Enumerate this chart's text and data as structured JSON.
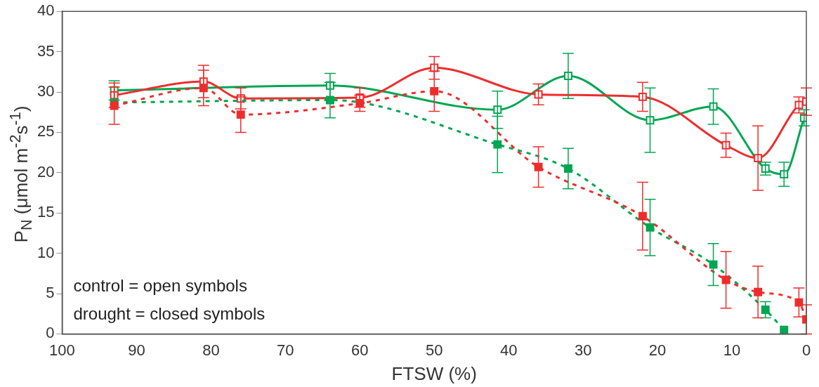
{
  "chart_data": {
    "type": "line",
    "xlabel": "FTSW (%)",
    "ylabel": "P$_{N}$ (μmol m$^{-2}$s$^{-1}$)",
    "xlim": [
      100,
      0
    ],
    "xticks": [
      100,
      90,
      80,
      70,
      60,
      50,
      40,
      30,
      20,
      10,
      0
    ],
    "ylim": [
      0,
      40
    ],
    "yticks": [
      0,
      5,
      10,
      15,
      20,
      25,
      30,
      35,
      40
    ],
    "grid": false,
    "legend": false,
    "marker": "square",
    "annotations": [
      "control = open symbols",
      "drought = closed symbols"
    ],
    "series": [
      {
        "color": "#00a651",
        "line_style": "solid",
        "x": [
          93,
          64,
          41.5,
          32,
          21,
          12.5,
          5.5,
          3,
          0.3
        ],
        "values": [
          30.2,
          30.8,
          27.8,
          32,
          26.5,
          28.2,
          20.5,
          19.8,
          26.8
        ],
        "errors": [
          1.2,
          1.5,
          2.3,
          2.8,
          4.0,
          2.2,
          0.8,
          1.5,
          1.0
        ]
      },
      {
        "color": "#ed2d2d",
        "line_style": "solid",
        "x": [
          93,
          81,
          76,
          60,
          50,
          36,
          22,
          10.8,
          6.5,
          1,
          0
        ],
        "values": [
          29.6,
          31.3,
          29.2,
          29.3,
          33.0,
          29.7,
          29.4,
          23.4,
          21.8,
          28.4,
          28.8
        ],
        "errors": [
          1.5,
          2.0,
          1.3,
          1.2,
          1.4,
          1.3,
          1.8,
          1.5,
          4.0,
          1.0,
          1.7
        ]
      },
      {
        "color": "#00a651",
        "line_style": "dashed",
        "x": [
          93,
          64,
          41.5,
          32,
          21,
          12.5,
          5.5,
          3
        ],
        "values": [
          28.7,
          29.0,
          23.5,
          20.5,
          13.2,
          8.6,
          3.0,
          0.5
        ],
        "errors": [
          null,
          2.2,
          3.5,
          2.5,
          3.5,
          2.6,
          1.0,
          null
        ]
      },
      {
        "color": "#ed2d2d",
        "line_style": "dashed",
        "x": [
          93,
          81,
          76,
          60,
          50,
          36,
          22,
          10.8,
          6.5,
          1,
          0
        ],
        "values": [
          28.3,
          30.5,
          27.2,
          28.6,
          30.1,
          20.7,
          14.6,
          6.7,
          5.2,
          3.9,
          1.8
        ],
        "errors": [
          2.3,
          2.2,
          2.2,
          1.0,
          2.5,
          2.5,
          4.2,
          3.5,
          3.2,
          1.8,
          1.8
        ]
      }
    ]
  }
}
